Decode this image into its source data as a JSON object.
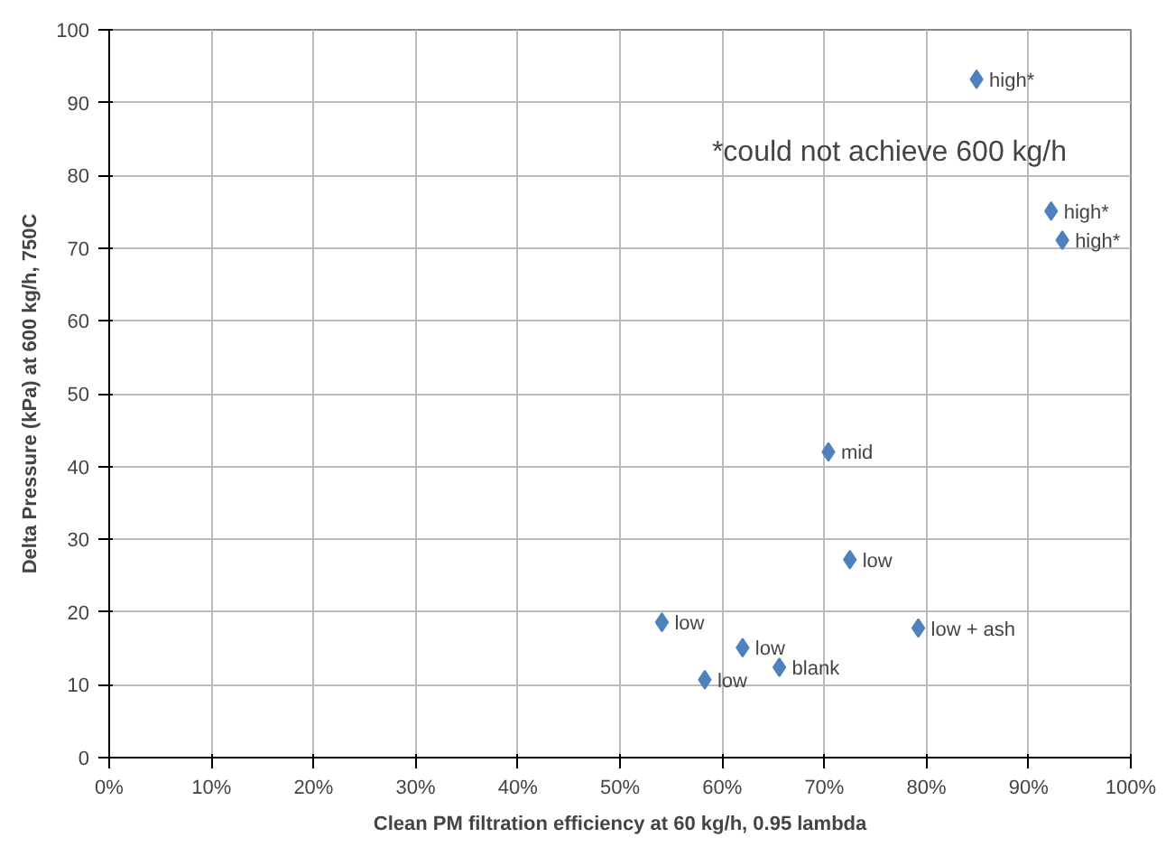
{
  "chart_data": {
    "type": "scatter",
    "xlabel": "Clean PM filtration efficiency at 60 kg/h, 0.95 lambda",
    "ylabel": "Delta Pressure (kPa) at 600 kg/h, 750C",
    "x": [
      84.9,
      92.2,
      93.3,
      70.4,
      72.5,
      54.1,
      79.2,
      62.0,
      65.6,
      58.3
    ],
    "values": [
      93.2,
      75.1,
      71.1,
      42.0,
      27.2,
      18.6,
      17.8,
      15.1,
      12.4,
      10.7
    ],
    "value_labels": [
      "high*",
      "high*",
      "high*",
      "mid",
      "low",
      "low",
      "low + ash",
      "low",
      "blank",
      "low"
    ],
    "color": "#4f81bd",
    "marker": "diamond",
    "xlim": [
      0,
      100
    ],
    "xticks": [
      {
        "value": 0,
        "label": "0%"
      },
      {
        "value": 10,
        "label": "10%"
      },
      {
        "value": 20,
        "label": "20%"
      },
      {
        "value": 30,
        "label": "30%"
      },
      {
        "value": 40,
        "label": "40%"
      },
      {
        "value": 50,
        "label": "50%"
      },
      {
        "value": 60,
        "label": "60%"
      },
      {
        "value": 70,
        "label": "70%"
      },
      {
        "value": 80,
        "label": "80%"
      },
      {
        "value": 90,
        "label": "90%"
      },
      {
        "value": 100,
        "label": "100%"
      }
    ],
    "ylim": [
      0,
      100
    ],
    "yticks": [
      0,
      10,
      20,
      30,
      40,
      50,
      60,
      70,
      80,
      90,
      100
    ],
    "grid": true,
    "annotations": [
      "*could not achieve 600 kg/h"
    ]
  }
}
